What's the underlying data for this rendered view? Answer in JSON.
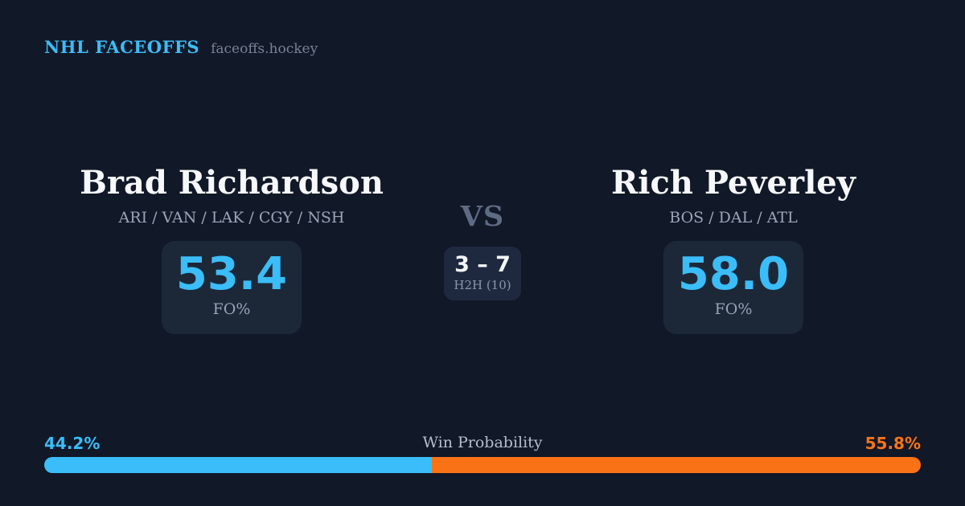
{
  "header": {
    "brand": "NHL FACEOFFS",
    "site": "faceoffs.hockey"
  },
  "players": {
    "left": {
      "name": "Brad Richardson",
      "teams": "ARI / VAN / LAK / CGY / NSH",
      "fo_pct": "53.4",
      "stat_label": "FO%"
    },
    "right": {
      "name": "Rich Peverley",
      "teams": "BOS / DAL / ATL",
      "fo_pct": "58.0",
      "stat_label": "FO%"
    }
  },
  "center": {
    "vs_label": "VS",
    "h2h_score": "3 – 7",
    "h2h_label": "H2H (10)"
  },
  "win_probability": {
    "title": "Win Probability",
    "left_label": "44.2%",
    "right_label": "55.8%",
    "left_value": 44.2,
    "right_value": 55.8
  },
  "colors": {
    "background": "#111827",
    "stat_card": "#1c2737",
    "h2h_card": "#1e2940",
    "accent_blue": "#3abdf8",
    "accent_orange": "#f97316",
    "name_white": "#f6f8fb",
    "muted_gray": "#9aa5b8",
    "vs_gray": "#5d6b83"
  }
}
